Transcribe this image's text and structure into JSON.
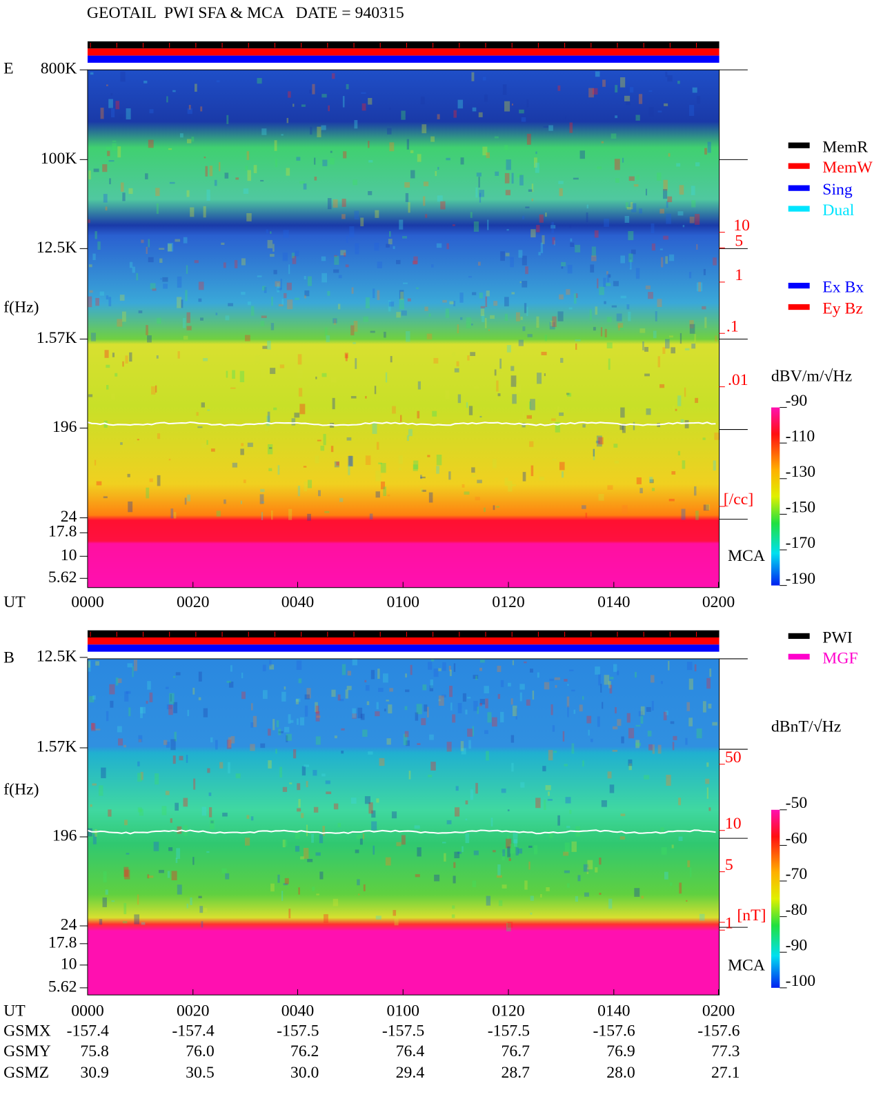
{
  "header": {
    "title": "GEOTAIL  PWI SFA & MCA   DATE = 940315"
  },
  "panels": [
    {
      "label": "E",
      "freq_labels": [
        "800K",
        "100K",
        "12.5K",
        "f(Hz)",
        "1.57K",
        "196",
        "24",
        "17.8",
        "10",
        "5.62"
      ],
      "time_axis_label": "UT",
      "times": [
        "0000",
        "0020",
        "0040",
        "0100",
        "0120",
        "0140",
        "0200"
      ],
      "density_labels": [
        "10",
        "5",
        "1",
        ".1",
        ".01",
        "[/cc]"
      ],
      "mca": "MCA",
      "colorbar": {
        "label": "dBV/m/√Hz",
        "lim": [
          -90,
          -190
        ],
        "ticks": [
          -90,
          -110,
          -130,
          -150,
          -170,
          -190
        ]
      }
    },
    {
      "label": "B",
      "freq_labels": [
        "12.5K",
        "1.57K",
        "f(Hz)",
        "196",
        "24",
        "17.8",
        "10",
        "5.62"
      ],
      "time_axis_label": "UT",
      "times": [
        "0000",
        "0020",
        "0040",
        "0100",
        "0120",
        "0140",
        "0200"
      ],
      "density_labels": [
        "50",
        "10",
        "5",
        "1",
        "[nT]"
      ],
      "mca": "MCA",
      "colorbar": {
        "label": "dBnT/√Hz",
        "lim": [
          -50,
          -100
        ],
        "ticks": [
          -50,
          -60,
          -70,
          -80,
          -90,
          -100
        ]
      }
    }
  ],
  "legends": [
    {
      "name": "MemR",
      "color": "#000000"
    },
    {
      "name": "MemW",
      "color": "#ff0000"
    },
    {
      "name": "Sing",
      "color": "#0000ff"
    },
    {
      "name": "Dual",
      "color": "#00e5ff"
    },
    {
      "name": "Ex Bx",
      "color": "#0000ff"
    },
    {
      "name": "Ey Bz",
      "color": "#ff0000"
    },
    {
      "name": "PWI",
      "color": "#000000"
    },
    {
      "name": "MGF",
      "color": "#ff00cc"
    }
  ],
  "orbit": {
    "rows": [
      {
        "label": "GSMX",
        "values": [
          "-157.4",
          "-157.4",
          "-157.5",
          "-157.5",
          "-157.5",
          "-157.6",
          "-157.6"
        ]
      },
      {
        "label": "GSMY",
        "values": [
          "75.8",
          "76.0",
          "76.2",
          "76.4",
          "76.7",
          "76.9",
          "77.3"
        ]
      },
      {
        "label": "GSMZ",
        "values": [
          "30.9",
          "30.5",
          "30.0",
          "29.4",
          "28.7",
          "28.0",
          "27.1"
        ]
      }
    ]
  }
}
